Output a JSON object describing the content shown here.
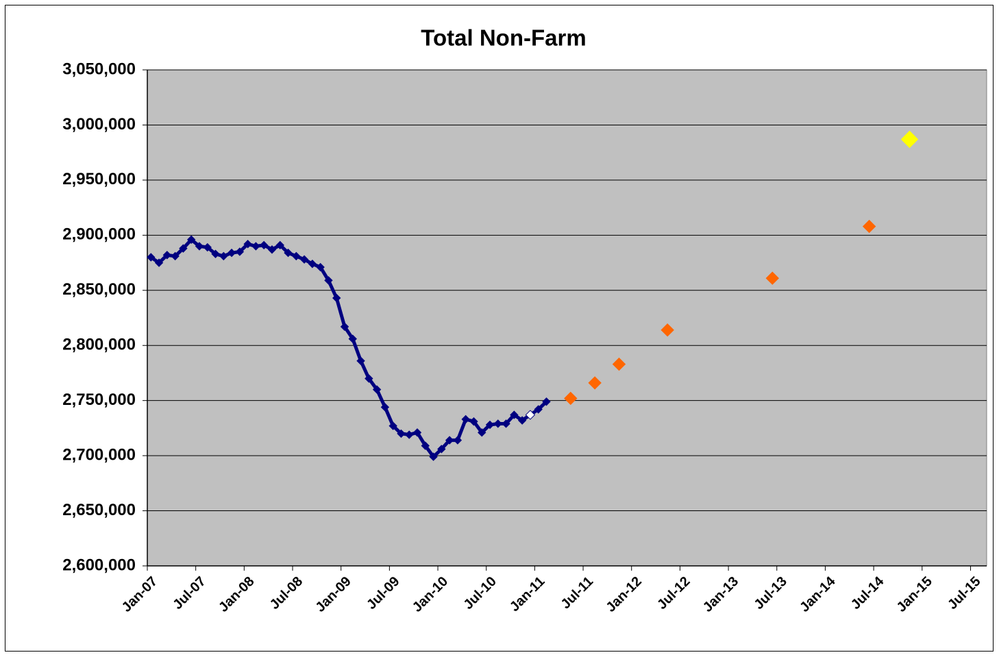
{
  "chart_data": {
    "type": "line",
    "title": "Total Non-Farm",
    "xlim": [
      "2007-01",
      "2015-09"
    ],
    "xticks": [
      {
        "value": "2007-01",
        "label": "Jan-07"
      },
      {
        "value": "2007-07",
        "label": "Jul-07"
      },
      {
        "value": "2008-01",
        "label": "Jan-08"
      },
      {
        "value": "2008-07",
        "label": "Jul-08"
      },
      {
        "value": "2009-01",
        "label": "Jan-09"
      },
      {
        "value": "2009-07",
        "label": "Jul-09"
      },
      {
        "value": "2010-01",
        "label": "Jan-10"
      },
      {
        "value": "2010-07",
        "label": "Jul-10"
      },
      {
        "value": "2011-01",
        "label": "Jan-11"
      },
      {
        "value": "2011-07",
        "label": "Jul-11"
      },
      {
        "value": "2012-01",
        "label": "Jan-12"
      },
      {
        "value": "2012-07",
        "label": "Jul-12"
      },
      {
        "value": "2013-01",
        "label": "Jan-13"
      },
      {
        "value": "2013-07",
        "label": "Jul-13"
      },
      {
        "value": "2014-01",
        "label": "Jan-14"
      },
      {
        "value": "2014-07",
        "label": "Jul-14"
      },
      {
        "value": "2015-01",
        "label": "Jan-15"
      },
      {
        "value": "2015-07",
        "label": "Jul-15"
      }
    ],
    "ylim": [
      2600000,
      3050000
    ],
    "yticks": [
      {
        "value": 2600000,
        "label": "2,600,000"
      },
      {
        "value": 2650000,
        "label": "2,650,000"
      },
      {
        "value": 2700000,
        "label": "2,700,000"
      },
      {
        "value": 2750000,
        "label": "2,750,000"
      },
      {
        "value": 2800000,
        "label": "2,800,000"
      },
      {
        "value": 2850000,
        "label": "2,850,000"
      },
      {
        "value": 2900000,
        "label": "2,900,000"
      },
      {
        "value": 2950000,
        "label": "2,950,000"
      },
      {
        "value": 3000000,
        "label": "3,000,000"
      },
      {
        "value": 3050000,
        "label": "3,050,000"
      }
    ],
    "grid": true,
    "plot_background": "#c0c0c0",
    "series": [
      {
        "color": "#000080",
        "line": true,
        "marker_size": 11,
        "x": [
          "2007-01",
          "2007-02",
          "2007-03",
          "2007-04",
          "2007-05",
          "2007-06",
          "2007-07",
          "2007-08",
          "2007-09",
          "2007-10",
          "2007-11",
          "2007-12",
          "2008-01",
          "2008-02",
          "2008-03",
          "2008-04",
          "2008-05",
          "2008-06",
          "2008-07",
          "2008-08",
          "2008-09",
          "2008-10",
          "2008-11",
          "2008-12",
          "2009-01",
          "2009-02",
          "2009-03",
          "2009-04",
          "2009-05",
          "2009-06",
          "2009-07",
          "2009-08",
          "2009-09",
          "2009-10",
          "2009-11",
          "2009-12",
          "2010-01",
          "2010-02",
          "2010-03",
          "2010-04",
          "2010-05",
          "2010-06",
          "2010-07",
          "2010-08",
          "2010-09",
          "2010-10",
          "2010-11",
          "2010-12",
          "2011-01",
          "2011-02"
        ],
        "values": [
          2880000,
          2875000,
          2882000,
          2881000,
          2888000,
          2896000,
          2890000,
          2889000,
          2883000,
          2881000,
          2884000,
          2885000,
          2892000,
          2890000,
          2891000,
          2887000,
          2891000,
          2884000,
          2881000,
          2878000,
          2874000,
          2871000,
          2859000,
          2843000,
          2817000,
          2806000,
          2786000,
          2770000,
          2760000,
          2744000,
          2727000,
          2720000,
          2719000,
          2721000,
          2709000,
          2699000,
          2706000,
          2714000,
          2714000,
          2733000,
          2731000,
          2721000,
          2728000,
          2729000,
          2729000,
          2737000,
          2732000,
          2737000,
          2742000,
          2749000
        ]
      },
      {
        "color": "#ffffff",
        "line": false,
        "marker_size": 13,
        "x": [
          "2010-12"
        ],
        "values": [
          2737000
        ]
      },
      {
        "color": "#ff6600",
        "line": false,
        "marker_size": 18,
        "x": [
          "2011-05",
          "2011-08",
          "2011-11",
          "2012-05",
          "2013-06",
          "2014-06"
        ],
        "values": [
          2752000,
          2766000,
          2783000,
          2814000,
          2861000,
          2908000
        ]
      },
      {
        "color": "#ffff00",
        "line": false,
        "marker_size": 24,
        "x": [
          "2014-11"
        ],
        "values": [
          2987000
        ]
      }
    ]
  }
}
